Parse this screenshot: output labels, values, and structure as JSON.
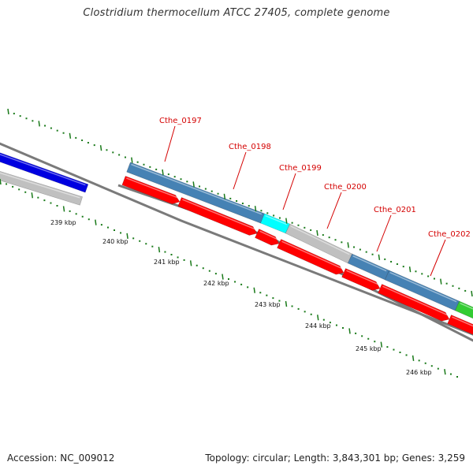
{
  "title": "Clostridium thermocellum ATCC 27405, complete genome",
  "accession": "Accession: NC_009012",
  "summary": "Topology: circular; Length: 3,843,301 bp; Genes: 3,259",
  "colors": {
    "backbone": "#7a7a7a",
    "tick": "#1a7a1a",
    "label_red": "#d40000",
    "steelblue": "#4682b4",
    "blue": "#0000e0",
    "gray": "#c0c0c0",
    "cyan": "#00ffff",
    "green": "#33cc33",
    "red": "#ff0000"
  },
  "tick_labels": [
    "239 kbp",
    "240 kbp",
    "241 kbp",
    "242 kbp",
    "243 kbp",
    "244 kbp",
    "245 kbp",
    "246 kbp"
  ],
  "gene_labels": [
    "Cthe_0197",
    "Cthe_0198",
    "Cthe_0199",
    "Cthe_0200",
    "Cthe_0201",
    "Cthe_0202"
  ],
  "features": [
    {
      "track": "outer",
      "color": "blue"
    },
    {
      "track": "outer",
      "color": "gray"
    },
    {
      "track": "upper",
      "color": "steelblue"
    },
    {
      "track": "upper",
      "color": "cyan"
    },
    {
      "track": "upper",
      "color": "gray"
    },
    {
      "track": "upper",
      "color": "steelblue"
    },
    {
      "track": "upper",
      "color": "steelblue"
    },
    {
      "track": "upper",
      "color": "green"
    },
    {
      "track": "lower",
      "color": "red",
      "strand": "+"
    },
    {
      "track": "lower",
      "color": "red",
      "strand": "+"
    },
    {
      "track": "lower",
      "color": "red",
      "strand": "+"
    },
    {
      "track": "lower",
      "color": "red",
      "strand": "+"
    },
    {
      "track": "lower",
      "color": "red",
      "strand": "+"
    },
    {
      "track": "lower",
      "color": "red",
      "strand": "+"
    },
    {
      "track": "lower",
      "color": "red",
      "strand": "+"
    }
  ]
}
